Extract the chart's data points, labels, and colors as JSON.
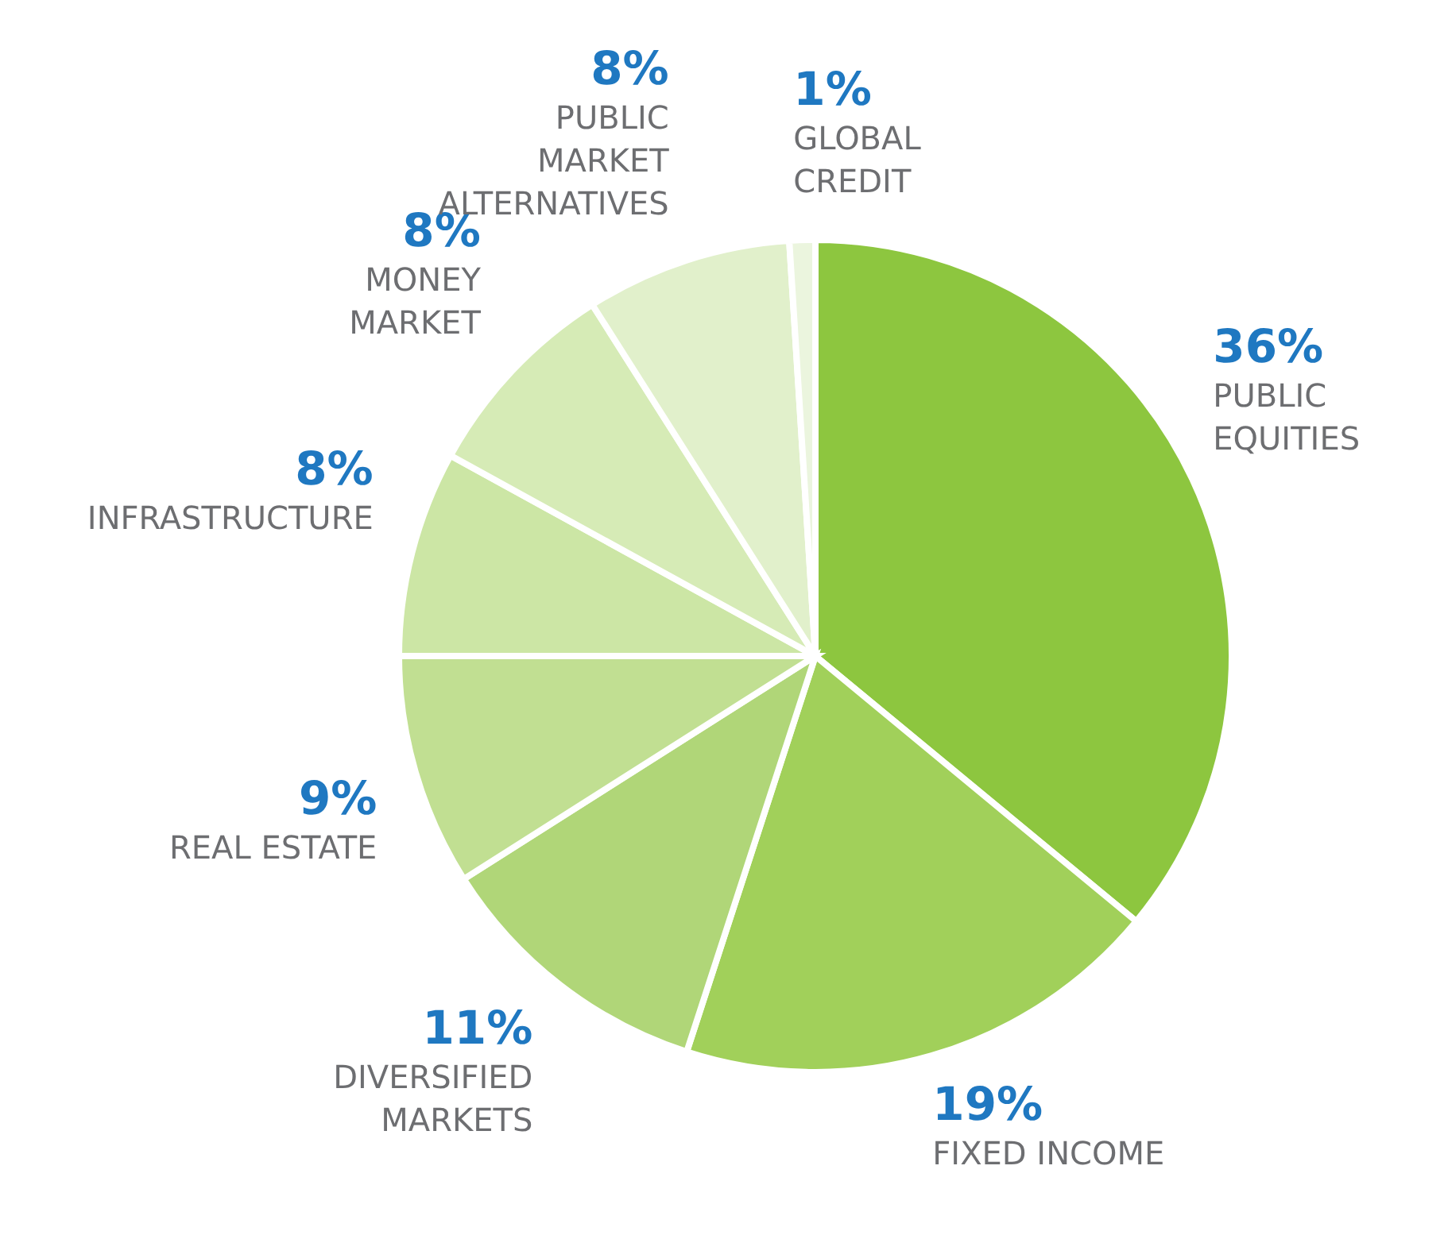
{
  "chart_data": {
    "type": "pie",
    "categories": [
      "PUBLIC\nEQUITIES",
      "FIXED INCOME",
      "DIVERSIFIED\nMARKETS",
      "REAL ESTATE",
      "INFRASTRUCTURE",
      "MONEY\nMARKET",
      "PUBLIC\nMARKET\nALTERNATIVES",
      "GLOBAL\nCREDIT"
    ],
    "values": [
      36,
      19,
      11,
      9,
      8,
      8,
      8,
      1
    ],
    "colors": [
      "#8dc63f",
      "#a1d05a",
      "#b0d678",
      "#c1df92",
      "#cce6a5",
      "#d6ebb6",
      "#e1f0cb",
      "#ebf5de"
    ],
    "value_labels": [
      "36%",
      "19%",
      "11%",
      "9%",
      "8%",
      "8%",
      "8%",
      "1%"
    ]
  }
}
